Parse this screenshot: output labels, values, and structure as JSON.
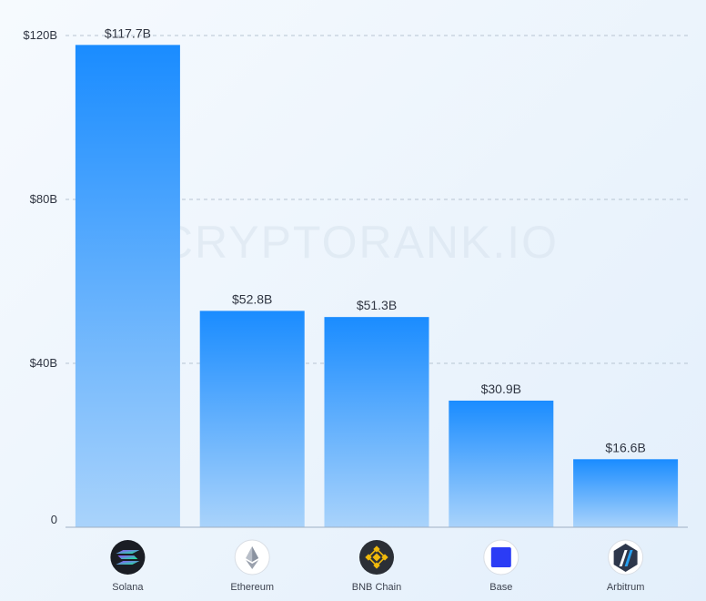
{
  "watermark": "CRYPTORANK.IO",
  "chart_data": {
    "type": "bar",
    "categories": [
      "Solana",
      "Ethereum",
      "BNB Chain",
      "Base",
      "Arbitrum"
    ],
    "values": [
      117.7,
      52.8,
      51.3,
      30.9,
      16.6
    ],
    "value_labels": [
      "$117.7B",
      "$52.8B",
      "$51.3B",
      "$30.9B",
      "$16.6B"
    ],
    "icons": [
      "solana-icon",
      "ethereum-icon",
      "bnb-chain-icon",
      "base-icon",
      "arbitrum-icon"
    ],
    "yticks": [
      0,
      40,
      80,
      120
    ],
    "ytick_labels": [
      "0",
      "$40B",
      "$80B",
      "$120B"
    ],
    "ylim": [
      0,
      120
    ],
    "grid": true,
    "bar_color_top": "#1a8cff",
    "bar_color_bottom": "#a9d3fb",
    "title": "",
    "xlabel": "",
    "ylabel": ""
  }
}
